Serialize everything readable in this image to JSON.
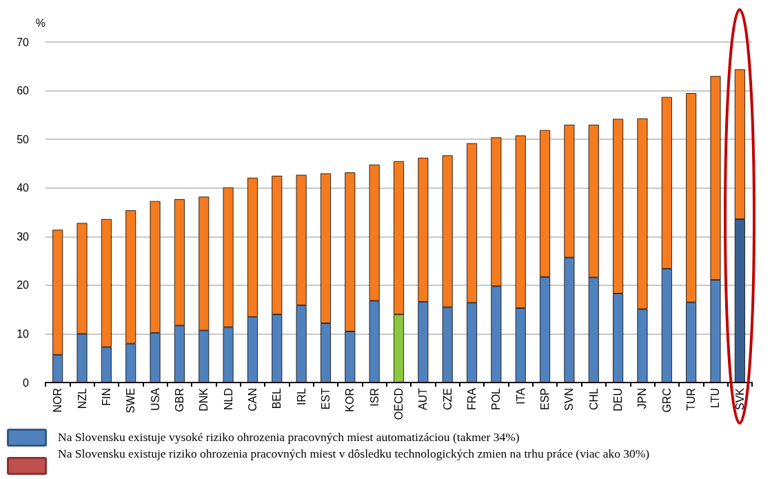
{
  "chart_data": {
    "type": "bar",
    "stacked": true,
    "ylabel": "%",
    "categories": [
      "NOR",
      "NZL",
      "FIN",
      "SWE",
      "USA",
      "GBR",
      "DNK",
      "NLD",
      "CAN",
      "BEL",
      "IRL",
      "EST",
      "KOR",
      "ISR",
      "OECD",
      "AUT",
      "CZE",
      "FRA",
      "POL",
      "ITA",
      "ESP",
      "SVN",
      "CHL",
      "DEU",
      "JPN",
      "GRC",
      "TUR",
      "LTU",
      "SVK"
    ],
    "series": [
      {
        "color": "#4f81bd",
        "colors": [
          "#4f81bd",
          "#4f81bd",
          "#4f81bd",
          "#4f81bd",
          "#4f81bd",
          "#4f81bd",
          "#4f81bd",
          "#4f81bd",
          "#4f81bd",
          "#4f81bd",
          "#4f81bd",
          "#4f81bd",
          "#4f81bd",
          "#4f81bd",
          "#8dc63f",
          "#4f81bd",
          "#4f81bd",
          "#4f81bd",
          "#4f81bd",
          "#4f81bd",
          "#4f81bd",
          "#4f81bd",
          "#4f81bd",
          "#4f81bd",
          "#4f81bd",
          "#4f81bd",
          "#4f81bd",
          "#4f81bd",
          "#3a6194"
        ],
        "values": [
          5.7,
          10.0,
          7.3,
          8.0,
          10.2,
          11.7,
          10.7,
          11.4,
          13.5,
          14.0,
          15.9,
          12.2,
          10.5,
          16.8,
          14.0,
          16.6,
          15.5,
          16.4,
          19.8,
          15.3,
          21.7,
          25.7,
          21.6,
          18.3,
          15.1,
          23.4,
          16.5,
          21.1,
          33.6
        ]
      },
      {
        "color": "#f47b20",
        "values": [
          25.7,
          22.8,
          26.3,
          27.4,
          27.1,
          26.0,
          27.5,
          28.7,
          28.6,
          28.5,
          26.8,
          30.8,
          32.7,
          28.0,
          31.5,
          29.6,
          31.2,
          32.8,
          30.6,
          35.5,
          30.2,
          27.3,
          31.4,
          35.9,
          39.2,
          35.3,
          43.0,
          41.9,
          30.8
        ]
      }
    ],
    "ylim": [
      0,
      70
    ],
    "yticks": [
      0,
      10,
      20,
      30,
      40,
      50,
      60,
      70
    ],
    "grid": "y",
    "annotations": [
      "Na Slovensku existuje vysoké riziko ohrozenia pracovných miest automatizáciou (takmer 34%)",
      "Na Slovensku existuje riziko ohrozenia pracovných miest v dôsledku technologických zmien na trhu práce (viac ako 30%)"
    ]
  }
}
